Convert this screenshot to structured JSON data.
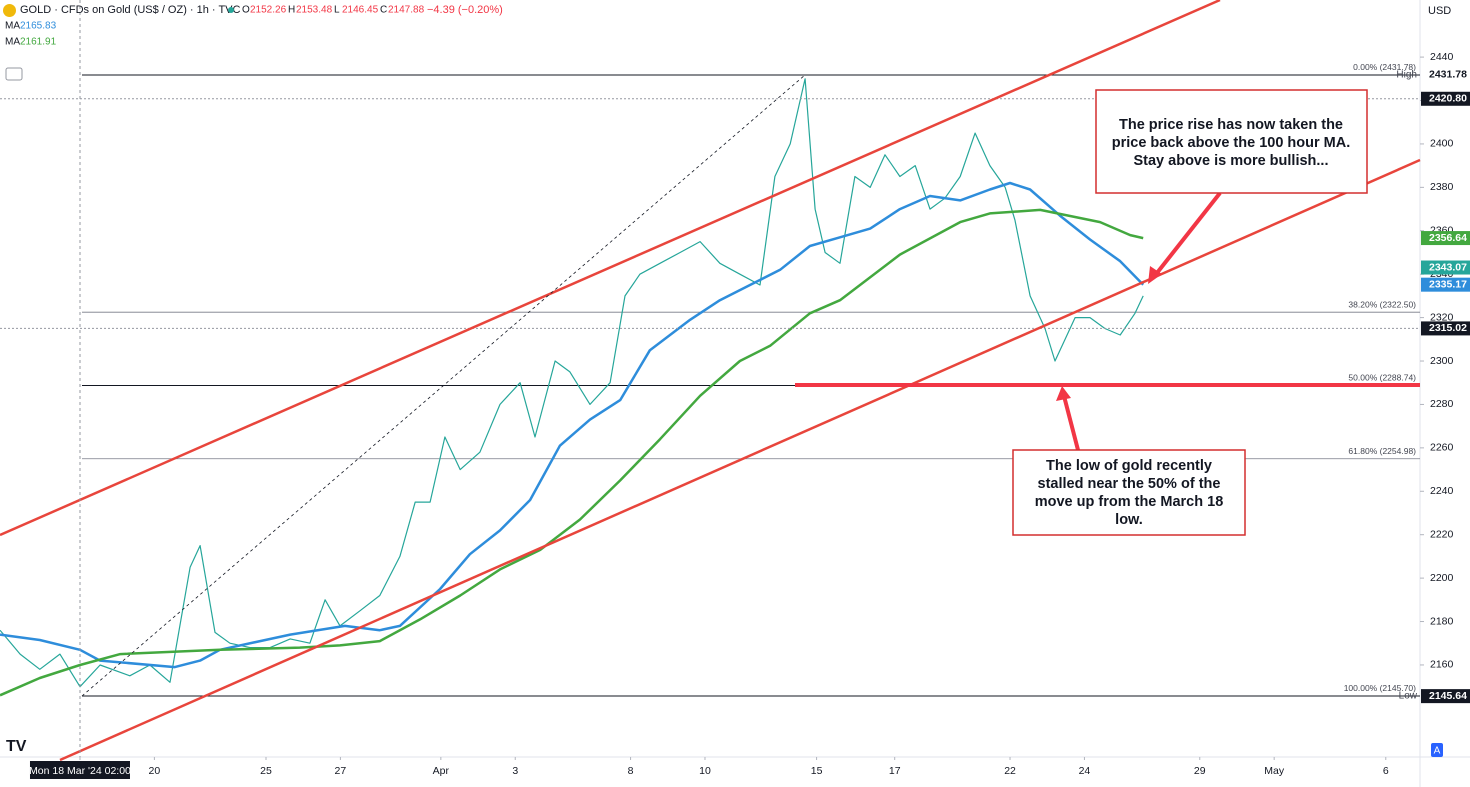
{
  "header": {
    "title": "GOLD · CFDs on Gold (US$ / OZ) · 1h · TVC",
    "ohlc": [
      {
        "label": "O",
        "value": 2152.26
      },
      {
        "label": "H",
        "value": 2153.48
      },
      {
        "label": "L",
        "value": 2146.45
      },
      {
        "label": "C",
        "value": 2147.88
      }
    ],
    "change": "−4.39 (−0.20%)",
    "currency": "USD"
  },
  "chart_data": {
    "type": "line",
    "xlim": [
      -2.15,
      36.02
    ],
    "ylim": [
      2117.6,
      2466.3
    ],
    "xticks": [
      {
        "value": 0,
        "label": "Mon 18 Mar '24  02:00"
      },
      {
        "value": 2,
        "label": "20"
      },
      {
        "value": 5,
        "label": "25"
      },
      {
        "value": 7,
        "label": "27"
      },
      {
        "value": 9.7,
        "label": "Apr"
      },
      {
        "value": 11.7,
        "label": "3"
      },
      {
        "value": 14.8,
        "label": "8"
      },
      {
        "value": 16.8,
        "label": "10"
      },
      {
        "value": 19.8,
        "label": "15"
      },
      {
        "value": 21.9,
        "label": "17"
      },
      {
        "value": 25,
        "label": "22"
      },
      {
        "value": 27,
        "label": "24"
      },
      {
        "value": 30.1,
        "label": "29"
      },
      {
        "value": 32.1,
        "label": "May"
      },
      {
        "value": 35.1,
        "label": "6"
      }
    ],
    "yticks": [
      2160,
      2180,
      2200,
      2220,
      2240,
      2260,
      2280,
      2300,
      2320,
      2340,
      2360,
      2380,
      2400,
      2420,
      2440
    ],
    "series": [
      {
        "name": "GOLD",
        "color": "#26a69a",
        "x": [
          -2.15,
          -1.61,
          -1.08,
          -0.54,
          0,
          0.54,
          1.34,
          1.88,
          2.42,
          2.96,
          3.23,
          3.63,
          4.03,
          4.57,
          5.11,
          5.65,
          6.18,
          6.59,
          6.99,
          7.53,
          8.06,
          8.6,
          9.01,
          9.41,
          9.81,
          10.22,
          10.75,
          11.29,
          11.83,
          12.23,
          12.77,
          13.17,
          13.71,
          14.25,
          14.65,
          15.05,
          15.59,
          16.13,
          16.67,
          17.2,
          17.74,
          18.28,
          18.68,
          19.09,
          19.49,
          19.76,
          20.03,
          20.43,
          20.83,
          21.24,
          21.64,
          22.04,
          22.45,
          22.85,
          23.25,
          23.66,
          24.06,
          24.46,
          24.87,
          25.13,
          25.54,
          25.94,
          26.21,
          26.48,
          26.75,
          27.15,
          27.55,
          27.96,
          28.36,
          28.58
        ],
        "values": [
          2176,
          2165,
          2158,
          2165,
          2150,
          2160,
          2155,
          2160,
          2152,
          2205,
          2215,
          2175,
          2170,
          2168,
          2168,
          2172,
          2170,
          2190,
          2178,
          2185,
          2192,
          2210,
          2235,
          2235,
          2265,
          2250,
          2258,
          2280,
          2290,
          2265,
          2300,
          2295,
          2280,
          2290,
          2330,
          2340,
          2345,
          2350,
          2355,
          2345,
          2340,
          2335,
          2385,
          2400,
          2430,
          2370,
          2350,
          2345,
          2385,
          2380,
          2395,
          2385,
          2390,
          2370,
          2375,
          2385,
          2405,
          2390,
          2380,
          2365,
          2330,
          2315,
          2300,
          2310,
          2320,
          2320,
          2315,
          2312,
          2322,
          2330
        ]
      },
      {
        "name": "MA",
        "legend_value": 2165.83,
        "color": "#2e8ddb",
        "x": [
          -2.15,
          -1.08,
          0,
          0.54,
          2.55,
          3.23,
          3.76,
          5.65,
          7.12,
          8.06,
          8.6,
          9.68,
          10.48,
          11.29,
          12.1,
          12.9,
          13.71,
          14.52,
          15.32,
          16.4,
          17.2,
          18.01,
          18.82,
          19.62,
          20.43,
          21.24,
          22.04,
          22.85,
          23.66,
          24.46,
          25,
          25.54,
          26.34,
          27.15,
          27.96,
          28.58
        ],
        "values": [
          2174,
          2171.5,
          2167,
          2162,
          2159,
          2162,
          2167,
          2174,
          2178,
          2176,
          2178,
          2195,
          2211,
          2222,
          2236,
          2261,
          2273,
          2282,
          2305,
          2319,
          2328,
          2335,
          2342,
          2353,
          2357,
          2361,
          2370,
          2376,
          2374,
          2379,
          2382,
          2379,
          2367,
          2356,
          2346,
          2335.17
        ]
      },
      {
        "name": "MA",
        "legend_value": 2161.91,
        "color": "#43a83f",
        "x": [
          -2.15,
          -1.08,
          0,
          1.08,
          3.76,
          5.91,
          6.99,
          8.06,
          9.14,
          10.22,
          11.29,
          12.37,
          13.44,
          14.52,
          15.59,
          16.67,
          17.74,
          18.55,
          19.62,
          20.43,
          22.04,
          23.66,
          24.46,
          25.81,
          27.42,
          28.23,
          28.58
        ],
        "values": [
          2146,
          2154,
          2160,
          2165,
          2167,
          2168,
          2169,
          2171,
          2181,
          2192,
          2204,
          2213,
          2227,
          2245,
          2264,
          2284,
          2300,
          2307,
          2322,
          2328,
          2349,
          2364,
          2368,
          2369.6,
          2364,
          2358,
          2356.64
        ]
      }
    ],
    "fib_levels": [
      {
        "label": "0.00% (2431.78)",
        "value": 2431.78
      },
      {
        "label": "38.20% (2322.50)",
        "value": 2322.5
      },
      {
        "label": "50.00% (2288.74)",
        "value": 2288.74
      },
      {
        "label": "61.80% (2254.98)",
        "value": 2254.98
      },
      {
        "label": "100.00% (2145.70)",
        "value": 2145.7
      }
    ],
    "price_labels": [
      {
        "value": 2431.78,
        "tag": "High",
        "bg": "#ffffff",
        "fg": "#131722"
      },
      {
        "value": 2420.8,
        "label": "2420.80",
        "bg": "#131722",
        "fg": "#ffffff"
      },
      {
        "value": 2356.64,
        "bg": "#43a83f",
        "fg": "#ffffff"
      },
      {
        "value": 2343.07,
        "bg": "#26a69a",
        "fg": "#ffffff"
      },
      {
        "value": 2335.17,
        "bg": "#2e8ddb",
        "fg": "#ffffff"
      },
      {
        "value": 2315.02,
        "bg": "#131722",
        "fg": "#ffffff"
      },
      {
        "value": 2145.7,
        "label": "2145.70",
        "tag": "Low",
        "bg": "#ffffff",
        "fg": "#131722"
      },
      {
        "value": 2145.64,
        "bg": "#131722",
        "fg": "#ffffff"
      }
    ],
    "annotations": [
      {
        "lines": [
          "The price rise has now taken the",
          "price back above the 100 hour MA.",
          "Stay above is more bullish..."
        ]
      },
      {
        "lines": [
          "The low of gold recently",
          "stalled near the 50% of the",
          "move up from the March 18",
          "low."
        ]
      }
    ]
  }
}
